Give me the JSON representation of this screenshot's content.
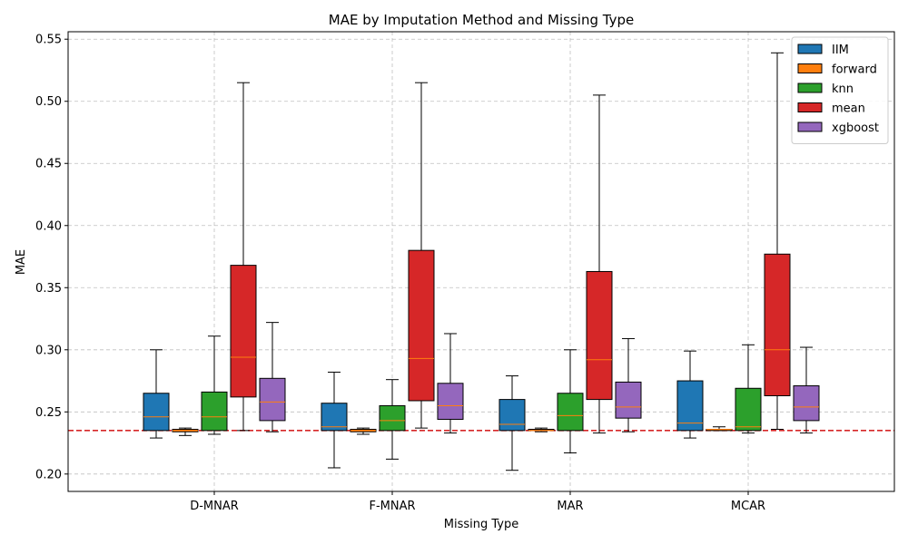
{
  "chart_data": {
    "type": "boxplot",
    "title": "MAE by Imputation Method and Missing Type",
    "xlabel": "Missing Type",
    "ylabel": "MAE",
    "ylim": [
      0.186,
      0.556
    ],
    "yticks": [
      "0.20",
      "0.25",
      "0.30",
      "0.35",
      "0.40",
      "0.45",
      "0.50",
      "0.55"
    ],
    "categories": [
      "D-MNAR",
      "F-MNAR",
      "MAR",
      "MCAR"
    ],
    "grid": true,
    "legend_position": "top-right",
    "reference_line": {
      "value": 0.235,
      "color": "#d62728",
      "style": "dashed"
    },
    "series": [
      {
        "name": "IIM",
        "color": "#1f77b4",
        "boxes": [
          {
            "whislo": 0.229,
            "q1": 0.235,
            "med": 0.246,
            "q3": 0.265,
            "whishi": 0.3
          },
          {
            "whislo": 0.205,
            "q1": 0.235,
            "med": 0.238,
            "q3": 0.257,
            "whishi": 0.282
          },
          {
            "whislo": 0.203,
            "q1": 0.235,
            "med": 0.24,
            "q3": 0.26,
            "whishi": 0.279
          },
          {
            "whislo": 0.229,
            "q1": 0.235,
            "med": 0.241,
            "q3": 0.275,
            "whishi": 0.299
          }
        ]
      },
      {
        "name": "forward",
        "color": "#ff7f0e",
        "boxes": [
          {
            "whislo": 0.231,
            "q1": 0.234,
            "med": 0.235,
            "q3": 0.236,
            "whishi": 0.237
          },
          {
            "whislo": 0.232,
            "q1": 0.234,
            "med": 0.235,
            "q3": 0.236,
            "whishi": 0.237
          },
          {
            "whislo": 0.234,
            "q1": 0.235,
            "med": 0.235,
            "q3": 0.236,
            "whishi": 0.237
          },
          {
            "whislo": 0.235,
            "q1": 0.235,
            "med": 0.236,
            "q3": 0.236,
            "whishi": 0.238
          }
        ]
      },
      {
        "name": "knn",
        "color": "#2ca02c",
        "boxes": [
          {
            "whislo": 0.232,
            "q1": 0.235,
            "med": 0.246,
            "q3": 0.266,
            "whishi": 0.311
          },
          {
            "whislo": 0.212,
            "q1": 0.235,
            "med": 0.243,
            "q3": 0.255,
            "whishi": 0.276
          },
          {
            "whislo": 0.217,
            "q1": 0.235,
            "med": 0.247,
            "q3": 0.265,
            "whishi": 0.3
          },
          {
            "whislo": 0.233,
            "q1": 0.235,
            "med": 0.238,
            "q3": 0.269,
            "whishi": 0.304
          }
        ]
      },
      {
        "name": "mean",
        "color": "#d62728",
        "boxes": [
          {
            "whislo": 0.235,
            "q1": 0.262,
            "med": 0.294,
            "q3": 0.368,
            "whishi": 0.515
          },
          {
            "whislo": 0.237,
            "q1": 0.259,
            "med": 0.293,
            "q3": 0.38,
            "whishi": 0.515
          },
          {
            "whislo": 0.233,
            "q1": 0.26,
            "med": 0.292,
            "q3": 0.363,
            "whishi": 0.505
          },
          {
            "whislo": 0.236,
            "q1": 0.263,
            "med": 0.3,
            "q3": 0.377,
            "whishi": 0.539
          }
        ]
      },
      {
        "name": "xgboost",
        "color": "#9467bd",
        "boxes": [
          {
            "whislo": 0.234,
            "q1": 0.243,
            "med": 0.258,
            "q3": 0.277,
            "whishi": 0.322
          },
          {
            "whislo": 0.233,
            "q1": 0.244,
            "med": 0.255,
            "q3": 0.273,
            "whishi": 0.313
          },
          {
            "whislo": 0.234,
            "q1": 0.245,
            "med": 0.254,
            "q3": 0.274,
            "whishi": 0.309
          },
          {
            "whislo": 0.233,
            "q1": 0.243,
            "med": 0.254,
            "q3": 0.271,
            "whishi": 0.302
          }
        ]
      }
    ]
  }
}
